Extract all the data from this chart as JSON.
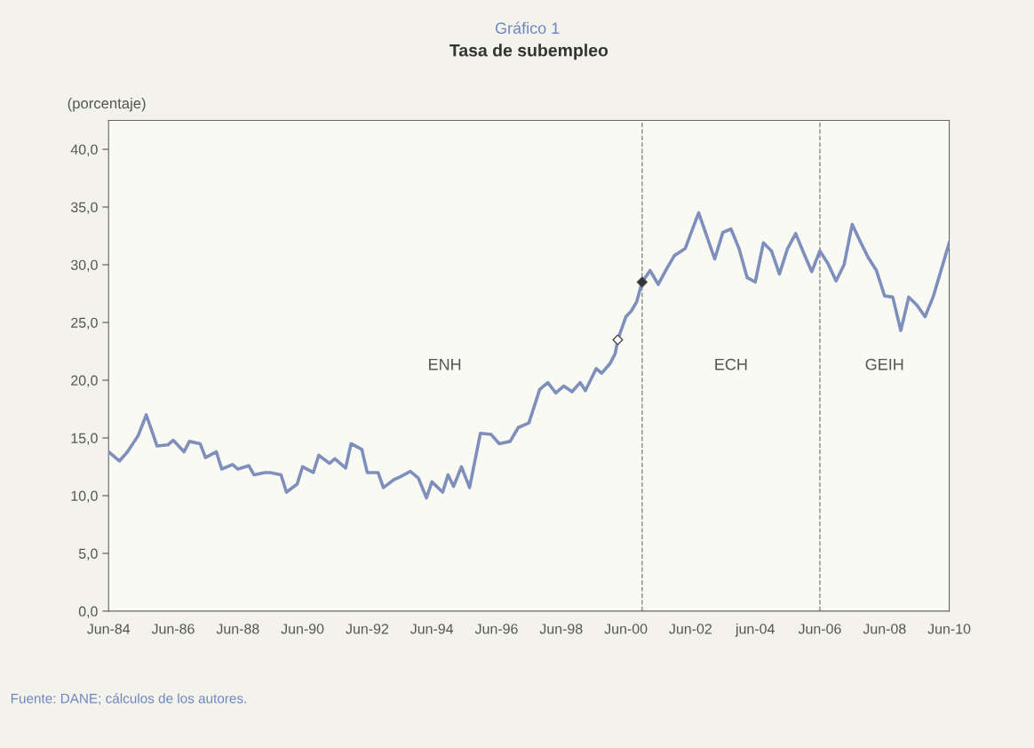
{
  "chart_data": {
    "type": "line",
    "subtitle": "Gráfico 1",
    "title": "Tasa de subempleo",
    "ylabel": "(porcentaje)",
    "xlim": [
      "1984-06",
      "2010-06"
    ],
    "ylim": [
      0,
      42.5
    ],
    "xticks": [
      {
        "value": "1984-06",
        "label": "Jun-84"
      },
      {
        "value": "1986-06",
        "label": "Jun-86"
      },
      {
        "value": "1988-06",
        "label": "Jun-88"
      },
      {
        "value": "1990-06",
        "label": "Jun-90"
      },
      {
        "value": "1992-06",
        "label": "Jun-92"
      },
      {
        "value": "1994-06",
        "label": "Jun-94"
      },
      {
        "value": "1996-06",
        "label": "Jun-96"
      },
      {
        "value": "1998-06",
        "label": "Jun-98"
      },
      {
        "value": "2000-06",
        "label": "Jun-00"
      },
      {
        "value": "2002-06",
        "label": "Jun-02"
      },
      {
        "value": "2004-06",
        "label": "jun-04"
      },
      {
        "value": "2006-06",
        "label": "Jun-06"
      },
      {
        "value": "2008-06",
        "label": "Jun-08"
      },
      {
        "value": "2010-06",
        "label": "Jun-10"
      }
    ],
    "yticks": [
      {
        "value": 0,
        "label": "0,0"
      },
      {
        "value": 5,
        "label": "5,0"
      },
      {
        "value": 10,
        "label": "10,0"
      },
      {
        "value": 15,
        "label": "15,0"
      },
      {
        "value": 20,
        "label": "20,0"
      },
      {
        "value": 25,
        "label": "25,0"
      },
      {
        "value": 30,
        "label": "30,0"
      },
      {
        "value": 35,
        "label": "35,0"
      },
      {
        "value": 40,
        "label": "40,0"
      }
    ],
    "grid": false,
    "series": [
      {
        "color": "#7f8fbc",
        "marker": "none",
        "line_style": "solid",
        "x": [
          "1984-06",
          "1984-10",
          "1985-01",
          "1985-05",
          "1985-08",
          "1985-12",
          "1986-04",
          "1986-06",
          "1986-10",
          "1986-12",
          "1987-04",
          "1987-06",
          "1987-10",
          "1987-12",
          "1988-04",
          "1988-06",
          "1988-10",
          "1988-12",
          "1989-04",
          "1989-06",
          "1989-10",
          "1989-12",
          "1990-04",
          "1990-06",
          "1990-10",
          "1990-12",
          "1991-04",
          "1991-06",
          "1991-10",
          "1991-12",
          "1992-04",
          "1992-06",
          "1992-10",
          "1992-12",
          "1993-04",
          "1993-06",
          "1993-10",
          "1994-01",
          "1994-04",
          "1994-06",
          "1994-10",
          "1994-12",
          "1995-02",
          "1995-05",
          "1995-08",
          "1995-12",
          "1996-04",
          "1996-07",
          "1996-11",
          "1997-02",
          "1997-06",
          "1997-10",
          "1998-01",
          "1998-04",
          "1998-07",
          "1998-10",
          "1999-01",
          "1999-03",
          "1999-07",
          "1999-09",
          "1999-12",
          "2000-02",
          "2000-03",
          "2000-06",
          "2000-08",
          "2000-10",
          "2000-12",
          "2001-03",
          "2001-06",
          "2001-09",
          "2001-12",
          "2002-04",
          "2002-09",
          "2003-03",
          "2003-06",
          "2003-09",
          "2003-12",
          "2004-03",
          "2004-06",
          "2004-09",
          "2004-12",
          "2005-03",
          "2005-06",
          "2005-09",
          "2005-12",
          "2006-03",
          "2006-06",
          "2006-09",
          "2006-12",
          "2007-03",
          "2007-06",
          "2007-09",
          "2007-12",
          "2008-03",
          "2008-06",
          "2008-09",
          "2008-12",
          "2009-03",
          "2009-06",
          "2009-09",
          "2009-12",
          "2010-06"
        ],
        "values": [
          13.8,
          13.0,
          13.8,
          15.2,
          17.0,
          14.3,
          14.4,
          14.8,
          13.8,
          14.7,
          14.5,
          13.3,
          13.8,
          12.3,
          12.7,
          12.3,
          12.6,
          11.8,
          12.0,
          12.0,
          11.8,
          10.3,
          11.0,
          12.5,
          12.0,
          13.5,
          12.8,
          13.2,
          12.4,
          14.5,
          14.0,
          12.0,
          12.0,
          10.7,
          11.4,
          11.6,
          12.1,
          11.5,
          9.8,
          11.2,
          10.3,
          11.8,
          10.8,
          12.5,
          10.7,
          15.4,
          15.3,
          14.5,
          14.7,
          15.9,
          16.3,
          19.2,
          19.8,
          18.9,
          19.5,
          19.0,
          19.8,
          19.1,
          21.0,
          20.6,
          21.4,
          22.3,
          23.5,
          25.5,
          26.0,
          26.8,
          28.5,
          29.5,
          28.3,
          29.6,
          30.8,
          31.4,
          34.5,
          30.5,
          32.8,
          33.1,
          31.4,
          28.9,
          28.5,
          31.9,
          31.2,
          29.2,
          31.4,
          32.7,
          31.0,
          29.4,
          31.2,
          30.1,
          28.6,
          30.0,
          33.5,
          32.0,
          30.6,
          29.5,
          27.3,
          27.2,
          24.3,
          27.2,
          26.5,
          25.5,
          27.2,
          31.9
        ]
      },
      {
        "type": "scatter",
        "color": "#ffffff",
        "marker": "diamond",
        "x": [
          "2000-03"
        ],
        "values": [
          23.5
        ]
      },
      {
        "type": "scatter",
        "color": "#333333",
        "marker": "diamond",
        "x": [
          "2000-12"
        ],
        "values": [
          28.5
        ]
      }
    ],
    "ref_lines": [
      {
        "axis": "x",
        "value": "2000-12",
        "color": "#888888",
        "line_style": "dashed"
      },
      {
        "axis": "x",
        "value": "2006-06",
        "color": "#888888",
        "line_style": "dashed"
      }
    ],
    "annotations": [
      "ENH",
      "ECH",
      "GEIH",
      "Fuente: DANE; cálculos de los autores."
    ]
  }
}
